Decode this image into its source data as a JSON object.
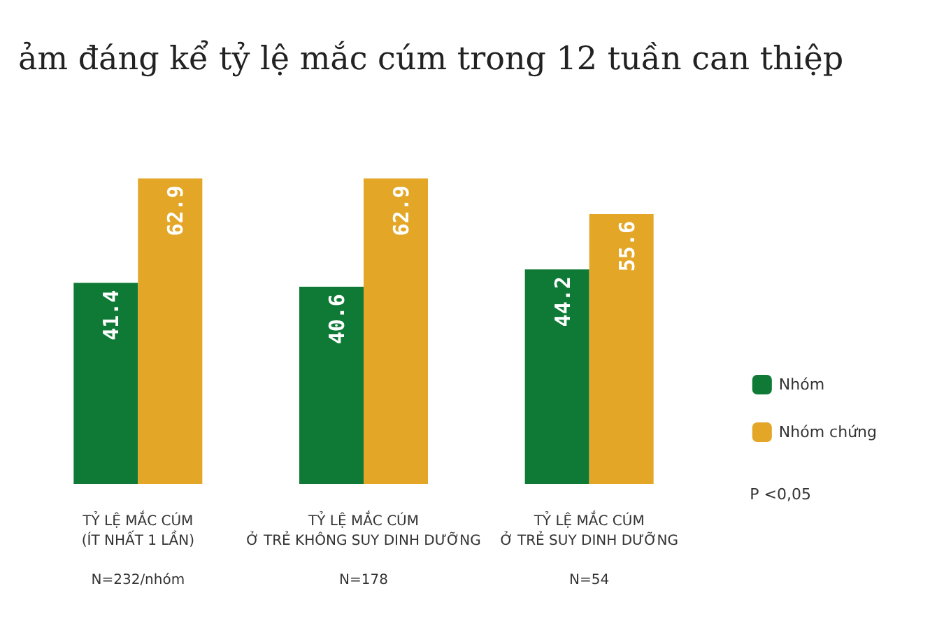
{
  "chart_data": {
    "type": "bar",
    "title": "ảm đáng kể tỷ lệ mắc cúm trong 12 tuần can thiệp",
    "categories": [
      "TỶ LỆ MẮC CÚM\n(ÍT NHẤT 1 LẦN)\n\nN=232/nhóm",
      "TỶ LỆ MẮC CÚM\nỞ TRẺ KHÔNG SUY DINH DƯỠNG\n\nN=178",
      "TỶ LỆ MẮC CÚM\nỞ TRẺ SUY DINH DƯỠNG\n\nN=54"
    ],
    "series": [
      {
        "name": "Nhóm",
        "color": "#0e7a35",
        "values": [
          41.4,
          40.6,
          44.2
        ]
      },
      {
        "name": "Nhóm chứng",
        "color": "#e3a626",
        "values": [
          62.9,
          62.9,
          55.6
        ]
      }
    ],
    "data_labels": true,
    "legend": "right",
    "annotations": [
      "P <0,05"
    ]
  }
}
